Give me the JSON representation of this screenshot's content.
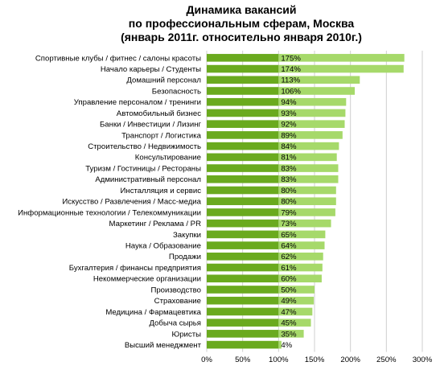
{
  "chart_data": {
    "type": "bar",
    "orientation": "horizontal",
    "title": [
      "Динамика вакансий",
      "по профессиональным сферам, Москва",
      "(январь 2011г. относительно января 2010г.)"
    ],
    "categories": [
      "Спортивные клубы / фитнес / салоны красоты",
      "Начало карьеры / Студенты",
      "Домашний персонал",
      "Безопасность",
      "Управление персоналом / тренинги",
      "Автомобильный бизнес",
      "Банки / Инвестиции / Лизинг",
      "Транспорт / Логистика",
      "Строительство / Недвижимость",
      "Консультирование",
      "Туризм / Гостиницы / Рестораны",
      "Административный персонал",
      "Инсталляция и сервис",
      "Искусство / Развлечения / Масс-медиа",
      "Информационные технологии / Телекоммуникации",
      "Маркетинг / Реклама / PR",
      "Закупки",
      "Наука / Образование",
      "Продажи",
      "Бухгалтерия / финансы предприятия",
      "Некоммерческие организации",
      "Производство",
      "Страхование",
      "Медицина / Фармацевтика",
      "Добыча сырья",
      "Юристы",
      "Высший менеджмент"
    ],
    "values": [
      175,
      174,
      113,
      106,
      94,
      93,
      92,
      89,
      84,
      81,
      83,
      83,
      80,
      80,
      79,
      73,
      65,
      64,
      62,
      61,
      60,
      50,
      49,
      47,
      45,
      35,
      4
    ],
    "value_labels": [
      "175%",
      "174%",
      "113%",
      "106%",
      "94%",
      "93%",
      "92%",
      "89%",
      "84%",
      "81%",
      "83%",
      "83%",
      "80%",
      "80%",
      "79%",
      "73%",
      "65%",
      "64%",
      "62%",
      "61%",
      "60%",
      "50%",
      "49%",
      "47%",
      "45%",
      "35%",
      "4%"
    ],
    "ticks": [
      0,
      50,
      100,
      150,
      200,
      250,
      300
    ],
    "tick_labels": [
      "0%",
      "50%",
      "100%",
      "150%",
      "200%",
      "250%",
      "300%"
    ],
    "xlim": [
      0,
      300
    ],
    "grid": true,
    "legend": "none",
    "colors": {
      "base": "#6aaa1e",
      "growth": "#a6d96a",
      "grid": "#cfcfcf"
    }
  }
}
